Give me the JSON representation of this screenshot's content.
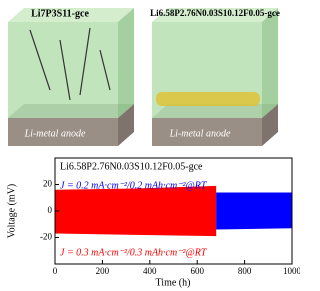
{
  "illustration": {
    "left_label": "Li7P3S11-gce",
    "right_label": "Li6.58P2.76N0.03S10.12F0.05-gce",
    "left_anode": "Li-metal anode",
    "right_anode": "Li-metal anode"
  },
  "chart_data": {
    "type": "band",
    "annotation": "Li6.58P2.76N0.03S10.12F0.05-gce",
    "x_label": "Time (h)",
    "y_label": "Voltage (mV)",
    "xlim": [
      0,
      1000
    ],
    "xticks": [
      0,
      200,
      400,
      600,
      800,
      1000
    ],
    "ylim": [
      -40,
      40
    ],
    "yticks": [
      -20,
      0,
      20
    ],
    "series": [
      {
        "name": "J = 0.3 mA·cm⁻²/0.3 mAh·cm⁻²@RT",
        "color": "#ff0000",
        "x": [
          0,
          340,
          680
        ],
        "values": [
          16,
          17,
          19
        ],
        "lower": [
          -17,
          -18,
          -19
        ]
      },
      {
        "name": "J = 0.2 mA·cm⁻²/0.2 mAh·cm⁻²@RT",
        "color": "#0000ff",
        "x": [
          680,
          1000
        ],
        "values": [
          14,
          14
        ],
        "lower": [
          -14,
          -13
        ]
      }
    ]
  }
}
